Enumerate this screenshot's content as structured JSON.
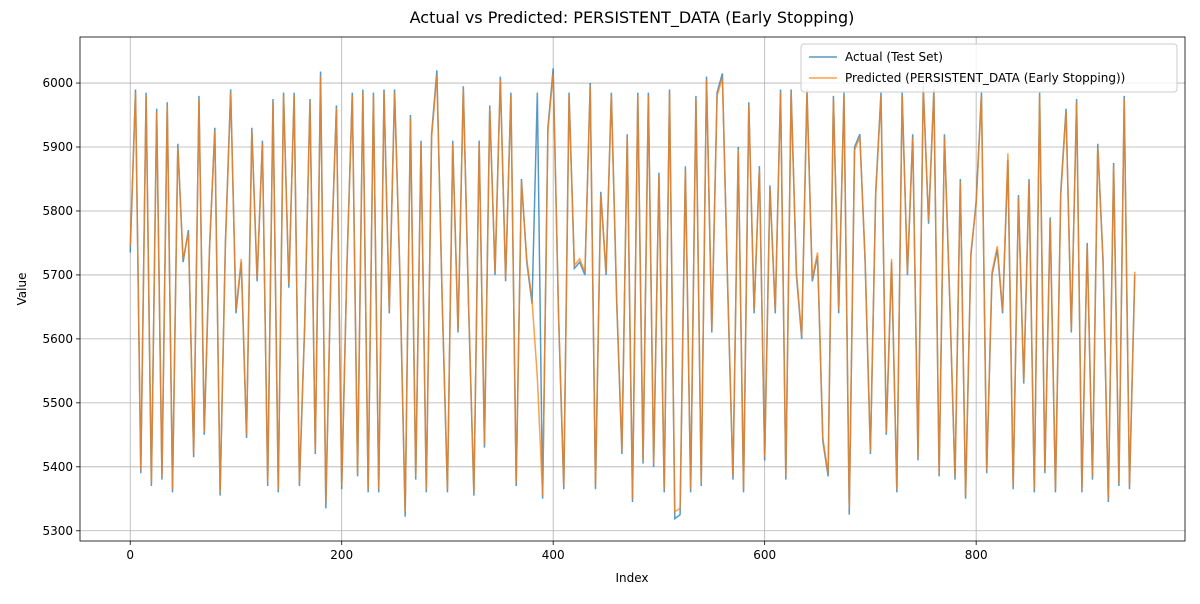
{
  "chart_data": {
    "type": "line",
    "title": "Actual vs Predicted: PERSISTENT_DATA (Early Stopping)",
    "x_label": "Index",
    "y_label": "Value",
    "x": [
      0,
      5,
      10,
      15,
      20,
      25,
      30,
      35,
      40,
      45,
      50,
      55,
      60,
      65,
      70,
      75,
      80,
      85,
      90,
      95,
      100,
      105,
      110,
      115,
      120,
      125,
      130,
      135,
      140,
      145,
      150,
      155,
      160,
      165,
      170,
      175,
      180,
      185,
      190,
      195,
      200,
      205,
      210,
      215,
      220,
      225,
      230,
      235,
      240,
      245,
      250,
      255,
      260,
      265,
      270,
      275,
      280,
      285,
      290,
      295,
      300,
      305,
      310,
      315,
      320,
      325,
      330,
      335,
      340,
      345,
      350,
      355,
      360,
      365,
      370,
      375,
      380,
      385,
      390,
      395,
      400,
      405,
      410,
      415,
      420,
      425,
      430,
      435,
      440,
      445,
      450,
      455,
      460,
      465,
      470,
      475,
      480,
      485,
      490,
      495,
      500,
      505,
      510,
      515,
      520,
      525,
      530,
      535,
      540,
      545,
      550,
      555,
      560,
      565,
      570,
      575,
      580,
      585,
      590,
      595,
      600,
      605,
      610,
      615,
      620,
      625,
      630,
      635,
      640,
      645,
      650,
      655,
      660,
      665,
      670,
      675,
      680,
      685,
      690,
      695,
      700,
      705,
      710,
      715,
      720,
      725,
      730,
      735,
      740,
      745,
      750,
      755,
      760,
      765,
      770,
      775,
      780,
      785,
      790,
      795,
      800,
      805,
      810,
      815,
      820,
      825,
      830,
      835,
      840,
      845,
      850,
      855,
      860,
      865,
      870,
      875,
      880,
      885,
      890,
      895,
      900,
      905,
      910,
      915,
      920,
      925,
      930,
      935,
      940,
      945,
      950
    ],
    "series": [
      {
        "name": "Actual (Test Set)",
        "color": "#1f77b4",
        "values": [
          5735,
          5990,
          5390,
          5985,
          5370,
          5960,
          5380,
          5970,
          5360,
          5905,
          5720,
          5770,
          5415,
          5980,
          5450,
          5740,
          5930,
          5355,
          5750,
          5990,
          5640,
          5720,
          5445,
          5930,
          5690,
          5910,
          5370,
          5975,
          5360,
          5985,
          5680,
          5985,
          5370,
          5620,
          5975,
          5420,
          6018,
          5335,
          5720,
          5965,
          5365,
          5720,
          5985,
          5385,
          5990,
          5360,
          5985,
          5360,
          5990,
          5640,
          5990,
          5700,
          5322,
          5950,
          5380,
          5910,
          5360,
          5920,
          6020,
          5660,
          5360,
          5910,
          5610,
          5995,
          5650,
          5355,
          5910,
          5430,
          5965,
          5700,
          6010,
          5690,
          5985,
          5370,
          5850,
          5720,
          5655,
          5985,
          5350,
          5930,
          6023,
          5640,
          5365,
          5985,
          5710,
          5720,
          5700,
          6000,
          5365,
          5830,
          5700,
          5985,
          5660,
          5420,
          5920,
          5345,
          5985,
          5405,
          5985,
          5400,
          5860,
          5360,
          5990,
          5319,
          5325,
          5870,
          5360,
          5980,
          5370,
          6010,
          5610,
          5985,
          6015,
          5680,
          5380,
          5900,
          5360,
          5970,
          5640,
          5870,
          5410,
          5840,
          5640,
          5990,
          5380,
          5990,
          5700,
          5600,
          5990,
          5690,
          5730,
          5440,
          5385,
          5980,
          5640,
          5985,
          5325,
          5900,
          5920,
          5720,
          5420,
          5830,
          5985,
          5450,
          5720,
          5360,
          5985,
          5700,
          5920,
          5410,
          5995,
          5780,
          5990,
          5385,
          5920,
          5660,
          5380,
          5850,
          5350,
          5730,
          5815,
          5985,
          5390,
          5700,
          5740,
          5640,
          5880,
          5365,
          5825,
          5530,
          5850,
          5360,
          5985,
          5390,
          5790,
          5360,
          5830,
          5960,
          5610,
          5975,
          5360,
          5750,
          5380,
          5905,
          5720,
          5345,
          5875,
          5370,
          5980,
          5365,
          5700
        ]
      },
      {
        "name": "Predicted (PERSISTENT_DATA (Early Stopping))",
        "color": "#ff7f0e",
        "values": [
          5745,
          5985,
          5395,
          5980,
          5375,
          5955,
          5385,
          5965,
          5365,
          5900,
          5725,
          5765,
          5420,
          5975,
          5455,
          5745,
          5925,
          5360,
          5745,
          5985,
          5645,
          5725,
          5450,
          5925,
          5695,
          5905,
          5375,
          5970,
          5365,
          5980,
          5685,
          5980,
          5375,
          5625,
          5970,
          5425,
          6010,
          5345,
          5725,
          5960,
          5370,
          5715,
          5980,
          5390,
          5985,
          5365,
          5980,
          5365,
          5985,
          5645,
          5985,
          5705,
          5330,
          5945,
          5385,
          5905,
          5365,
          5915,
          6012,
          5665,
          5365,
          5905,
          5615,
          5990,
          5655,
          5360,
          5905,
          5435,
          5960,
          5705,
          6005,
          5695,
          5980,
          5375,
          5845,
          5725,
          5660,
          5540,
          5355,
          5925,
          6015,
          5645,
          5370,
          5980,
          5715,
          5725,
          5705,
          5995,
          5370,
          5825,
          5705,
          5980,
          5665,
          5425,
          5915,
          5350,
          5980,
          5410,
          5980,
          5405,
          5855,
          5365,
          5985,
          5330,
          5335,
          5865,
          5365,
          5975,
          5375,
          6005,
          5615,
          5980,
          6008,
          5685,
          5385,
          5895,
          5365,
          5965,
          5645,
          5865,
          5415,
          5835,
          5645,
          5985,
          5385,
          5985,
          5705,
          5605,
          5985,
          5695,
          5735,
          5445,
          5390,
          5975,
          5645,
          5980,
          5335,
          5895,
          5915,
          5725,
          5425,
          5825,
          5980,
          5455,
          5725,
          5365,
          5980,
          5705,
          5915,
          5415,
          5990,
          5785,
          5985,
          5390,
          5915,
          5665,
          5385,
          5845,
          5355,
          5735,
          5810,
          5980,
          5395,
          5705,
          5745,
          5645,
          5890,
          5370,
          5820,
          5535,
          5845,
          5365,
          5980,
          5395,
          5785,
          5365,
          5825,
          5955,
          5615,
          5970,
          5365,
          5745,
          5385,
          5900,
          5725,
          5350,
          5870,
          5375,
          5975,
          5370,
          5705
        ]
      }
    ],
    "xlim": [
      -47.5,
      997.5
    ],
    "ylim": [
      5284,
      6072
    ],
    "xticks": [
      0,
      200,
      400,
      600,
      800
    ],
    "yticks": [
      5300,
      5400,
      5500,
      5600,
      5700,
      5800,
      5900,
      6000
    ],
    "grid": true,
    "legend": "upper right"
  }
}
